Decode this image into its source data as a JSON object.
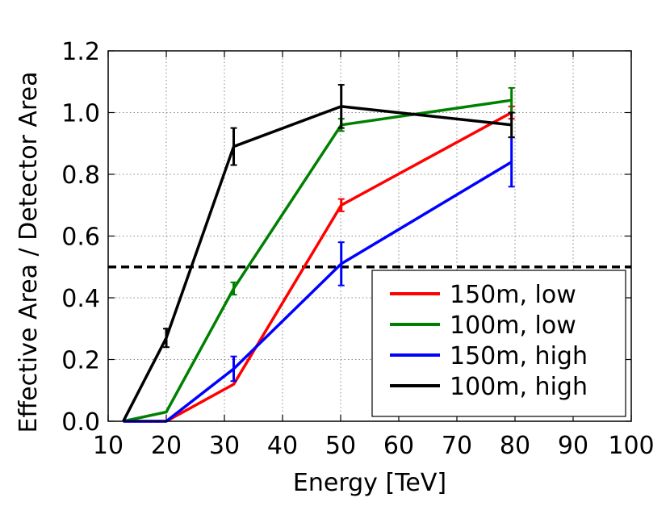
{
  "chart_data": {
    "type": "line",
    "title": "",
    "xlabel": "Energy [TeV]",
    "ylabel": "Effective Area / Detector Area",
    "xlim": [
      10,
      100
    ],
    "ylim": [
      0.0,
      1.2
    ],
    "xticks": [
      10,
      20,
      30,
      40,
      50,
      60,
      70,
      80,
      90,
      100
    ],
    "yticks": [
      0.0,
      0.2,
      0.4,
      0.6,
      0.8,
      1.0,
      1.2
    ],
    "xtick_labels": [
      "10",
      "20",
      "30",
      "40",
      "50",
      "60",
      "70",
      "80",
      "90",
      "100"
    ],
    "ytick_labels": [
      "0.0",
      "0.2",
      "0.4",
      "0.6",
      "0.8",
      "1.0",
      "1.2"
    ],
    "grid": true,
    "legend_position": "bottom-right",
    "reference_line": {
      "y": 0.5,
      "style": "dashed",
      "color": "#000000"
    },
    "series": [
      {
        "name": "150m, low",
        "color": "#ff0000",
        "x": [
          12.6,
          20,
          31.6,
          50.1,
          79.4
        ],
        "y": [
          0.0,
          0.0,
          0.12,
          0.7,
          1.0
        ],
        "err": [
          0,
          0,
          0,
          0.02,
          0.02
        ]
      },
      {
        "name": "100m, low",
        "color": "#008000",
        "x": [
          12.6,
          20,
          31.6,
          50.1,
          79.4
        ],
        "y": [
          0.0,
          0.03,
          0.43,
          0.96,
          1.04
        ],
        "err": [
          0,
          0,
          0.02,
          0.02,
          0.04
        ]
      },
      {
        "name": "150m, high",
        "color": "#0000ff",
        "x": [
          12.6,
          20,
          31.6,
          50.1,
          79.4
        ],
        "y": [
          0.0,
          0.0,
          0.17,
          0.51,
          0.84
        ],
        "err": [
          0,
          0,
          0.04,
          0.07,
          0.08
        ]
      },
      {
        "name": "100m, high",
        "color": "#000000",
        "x": [
          12.6,
          20,
          31.6,
          50.1,
          79.4
        ],
        "y": [
          0.0,
          0.27,
          0.89,
          1.02,
          0.96
        ],
        "err": [
          0,
          0.03,
          0.06,
          0.07,
          0.04
        ]
      }
    ]
  }
}
